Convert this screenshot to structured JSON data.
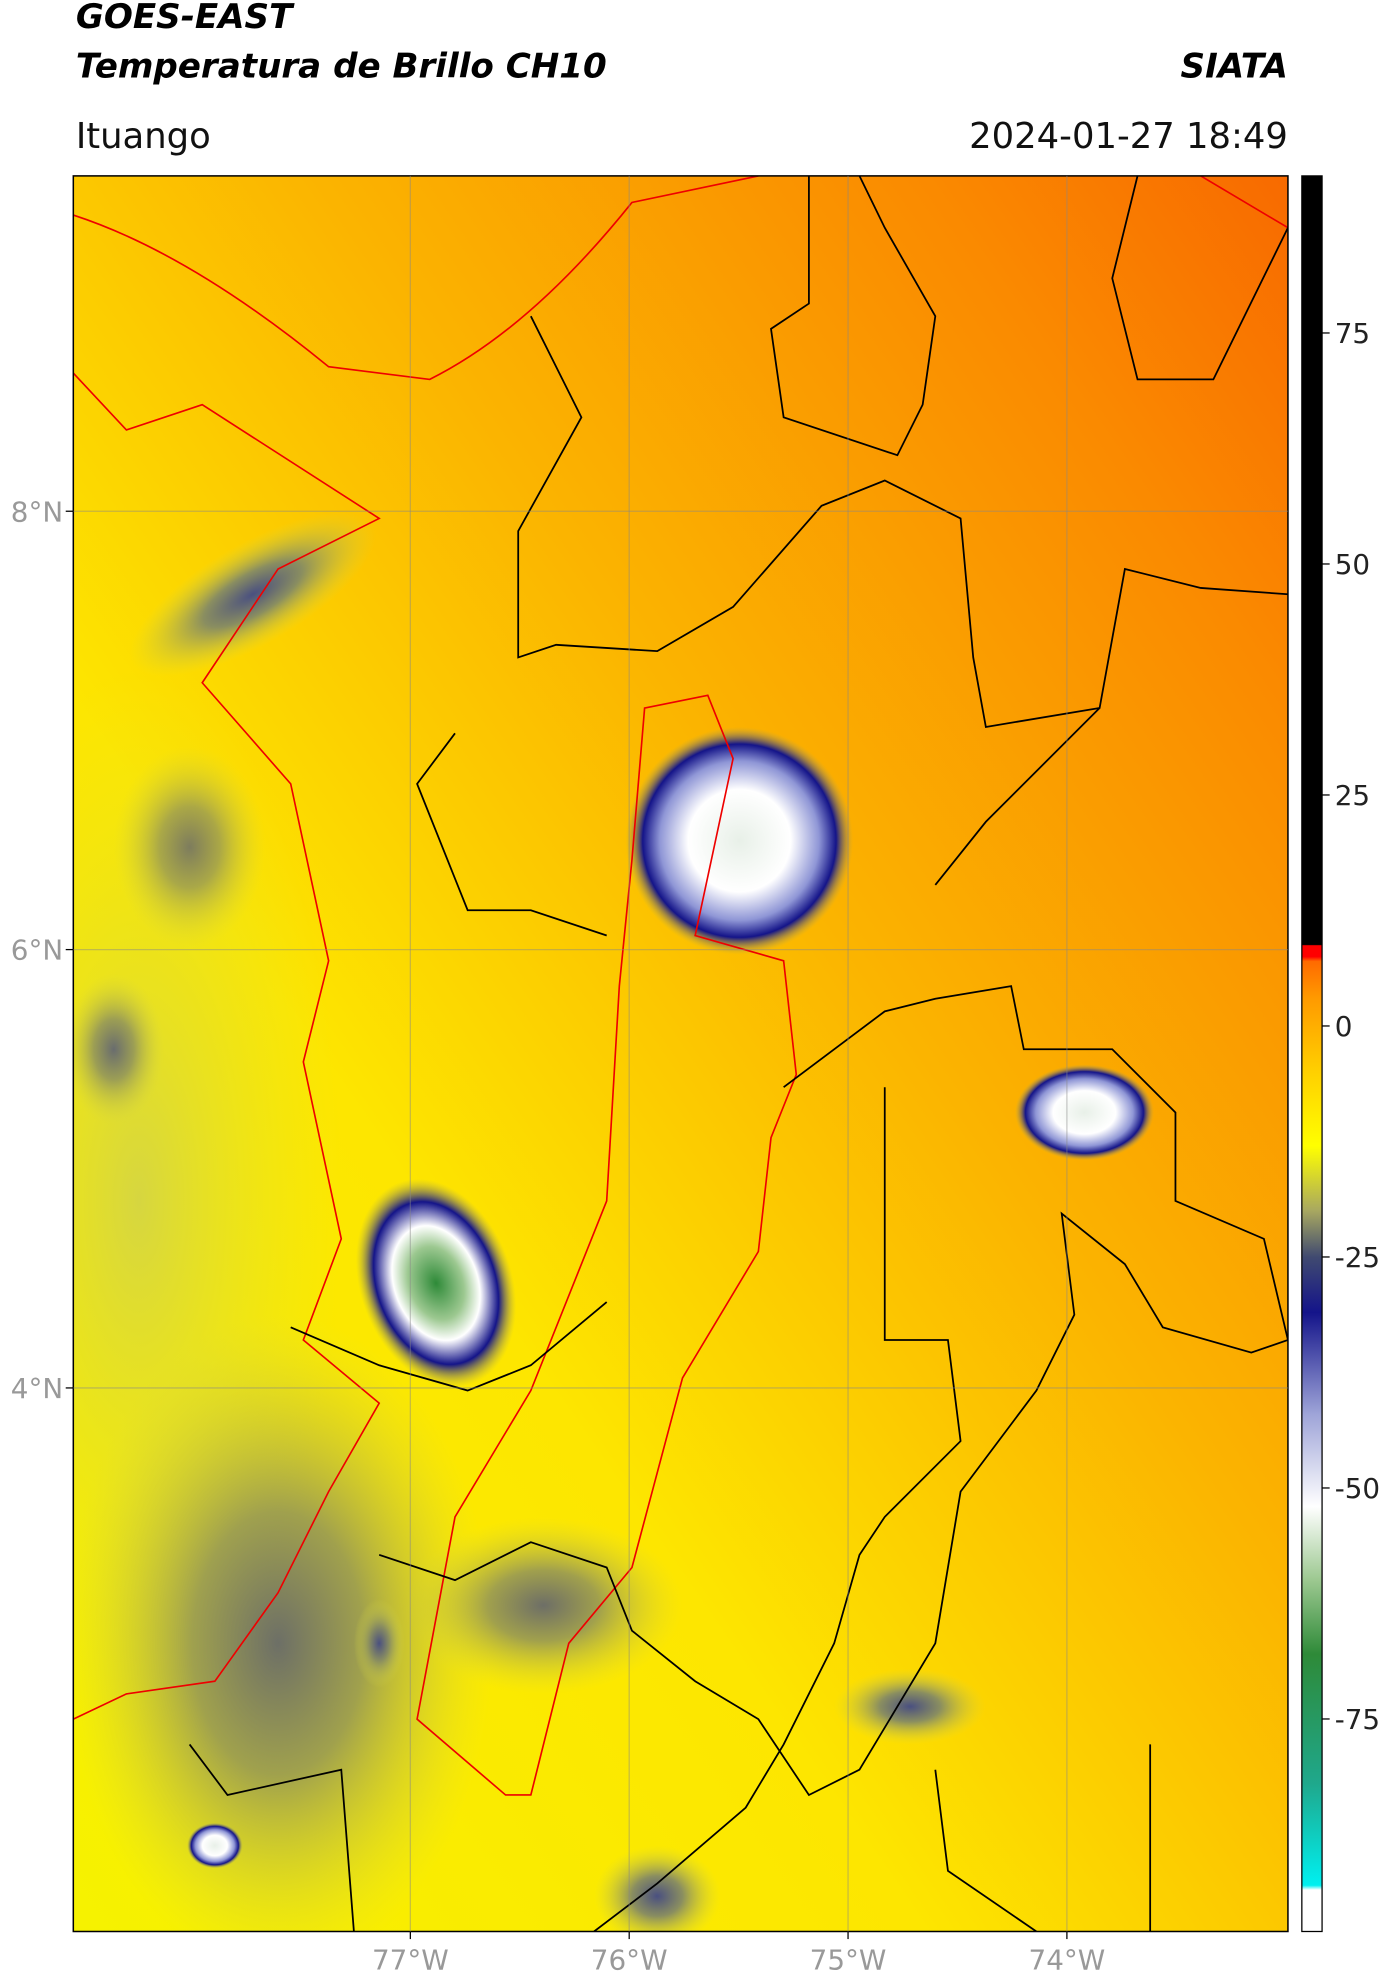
{
  "chart_data": {
    "type": "map",
    "title": "GOES-EAST",
    "subtitle": "Temperatura de Brillo CH10",
    "source": "SIATA",
    "location": "Ituango",
    "timestamp": "2024-01-27 18:49",
    "xlim": [
      -78.54,
      -72.99
    ],
    "ylim": [
      1.52,
      9.53
    ],
    "xticks": [
      {
        "value": -77,
        "label": "77°W"
      },
      {
        "value": -76,
        "label": "76°W"
      },
      {
        "value": -75,
        "label": "75°W"
      },
      {
        "value": -74,
        "label": "74°W"
      }
    ],
    "yticks": [
      {
        "value": 8,
        "label": "8°N"
      },
      {
        "value": 6,
        "label": "6°N"
      },
      {
        "value": 4,
        "label": "4°N"
      }
    ],
    "grid": true,
    "colorbar": {
      "lim": [
        -98,
        92
      ],
      "ticks": [
        75,
        50,
        25,
        0,
        -25,
        -50,
        -75
      ],
      "stops": [
        {
          "value": -98,
          "color": "#ffffff"
        },
        {
          "value": -93.5,
          "color": "#ffffff"
        },
        {
          "value": -93,
          "color": "#00f0f0"
        },
        {
          "value": -82,
          "color": "#1fa88c"
        },
        {
          "value": -68,
          "color": "#2e8a38"
        },
        {
          "value": -60,
          "color": "#9cc890"
        },
        {
          "value": -52,
          "color": "#ffffff"
        },
        {
          "value": -42,
          "color": "#9ea4d8"
        },
        {
          "value": -31,
          "color": "#14148a"
        },
        {
          "value": -25,
          "color": "#404a70"
        },
        {
          "value": -20,
          "color": "#a8a860"
        },
        {
          "value": -13,
          "color": "#ffff00"
        },
        {
          "value": -5,
          "color": "#ffd000"
        },
        {
          "value": 3,
          "color": "#ff9a00"
        },
        {
          "value": 7,
          "color": "#ff6a00"
        },
        {
          "value": 7.5,
          "color": "#ff0000"
        },
        {
          "value": 8.7,
          "color": "#ff0000"
        },
        {
          "value": 8.8,
          "color": "#000000"
        },
        {
          "value": 92,
          "color": "#000000"
        }
      ]
    }
  }
}
